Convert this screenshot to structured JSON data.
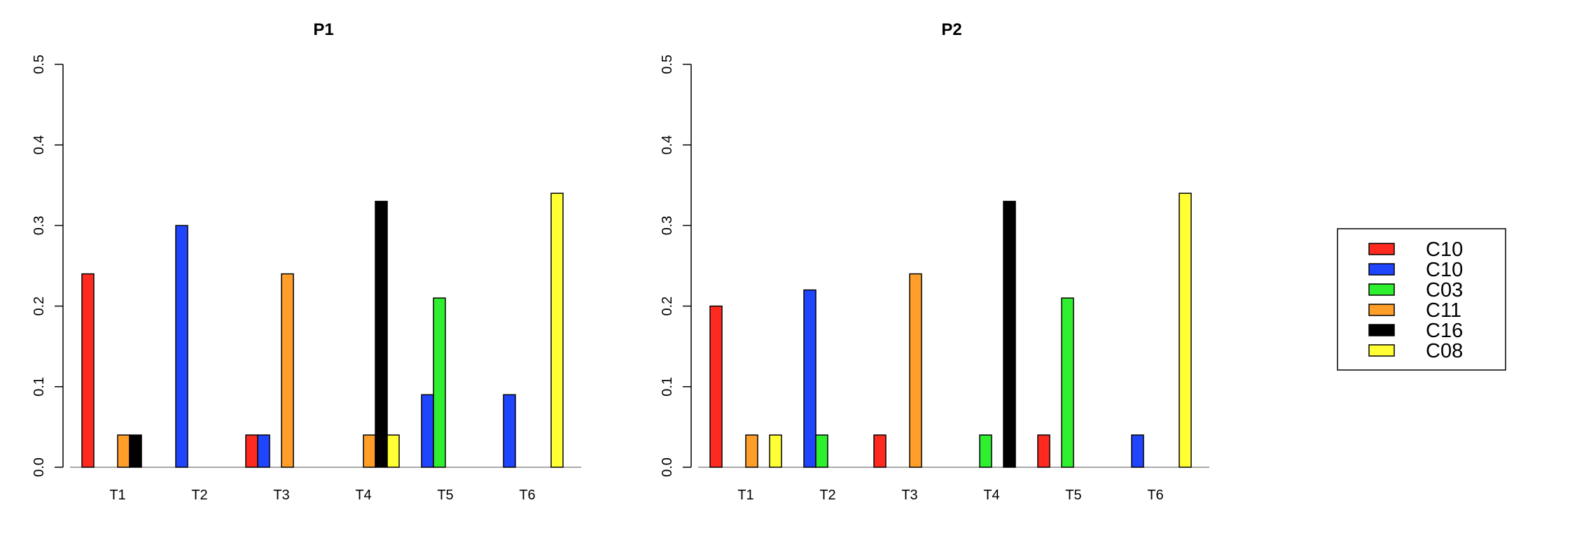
{
  "chart_data": [
    {
      "type": "bar",
      "title": "P1",
      "xlabel": "",
      "ylabel": "",
      "ylim": [
        0,
        0.5
      ],
      "yticks": [
        "0.0",
        "0.1",
        "0.2",
        "0.3",
        "0.4",
        "0.5"
      ],
      "categories": [
        "T1",
        "T2",
        "T3",
        "T4",
        "T5",
        "T6"
      ],
      "series": [
        {
          "color": "#ff2a1f",
          "values": [
            0.24,
            0,
            0.04,
            0,
            0,
            0
          ]
        },
        {
          "color": "#1f45ff",
          "values": [
            0,
            0.3,
            0.04,
            0,
            0.09,
            0.09
          ]
        },
        {
          "color": "#2ef02e",
          "values": [
            0,
            0,
            0,
            0,
            0.21,
            0
          ]
        },
        {
          "color": "#ff9f2a",
          "values": [
            0.04,
            0,
            0.24,
            0.04,
            0,
            0
          ]
        },
        {
          "color": "#000000",
          "values": [
            0.04,
            0,
            0,
            0.33,
            0,
            0
          ]
        },
        {
          "color": "#ffff33",
          "values": [
            0,
            0,
            0,
            0.04,
            0,
            0.34
          ]
        }
      ]
    },
    {
      "type": "bar",
      "title": "P2",
      "xlabel": "",
      "ylabel": "",
      "ylim": [
        0,
        0.5
      ],
      "yticks": [
        "0.0",
        "0.1",
        "0.2",
        "0.3",
        "0.4",
        "0.5"
      ],
      "categories": [
        "T1",
        "T2",
        "T3",
        "T4",
        "T5",
        "T6"
      ],
      "series": [
        {
          "color": "#ff2a1f",
          "values": [
            0.2,
            0,
            0.04,
            0,
            0.04,
            0
          ]
        },
        {
          "color": "#1f45ff",
          "values": [
            0,
            0.22,
            0,
            0,
            0,
            0.04
          ]
        },
        {
          "color": "#2ef02e",
          "values": [
            0,
            0.04,
            0,
            0.04,
            0.21,
            0
          ]
        },
        {
          "color": "#ff9f2a",
          "values": [
            0.04,
            0,
            0.24,
            0,
            0,
            0
          ]
        },
        {
          "color": "#000000",
          "values": [
            0,
            0,
            0,
            0.33,
            0,
            0
          ]
        },
        {
          "color": "#ffff33",
          "values": [
            0.04,
            0,
            0,
            0,
            0,
            0.34
          ]
        }
      ]
    }
  ],
  "legend": {
    "placement": "right",
    "entries": [
      {
        "label": "C10",
        "color": "#ff2a1f"
      },
      {
        "label": "C10",
        "color": "#1f45ff"
      },
      {
        "label": "C03",
        "color": "#2ef02e"
      },
      {
        "label": "C11",
        "color": "#ff9f2a"
      },
      {
        "label": "C16",
        "color": "#000000"
      },
      {
        "label": "C08",
        "color": "#ffff33"
      }
    ]
  }
}
